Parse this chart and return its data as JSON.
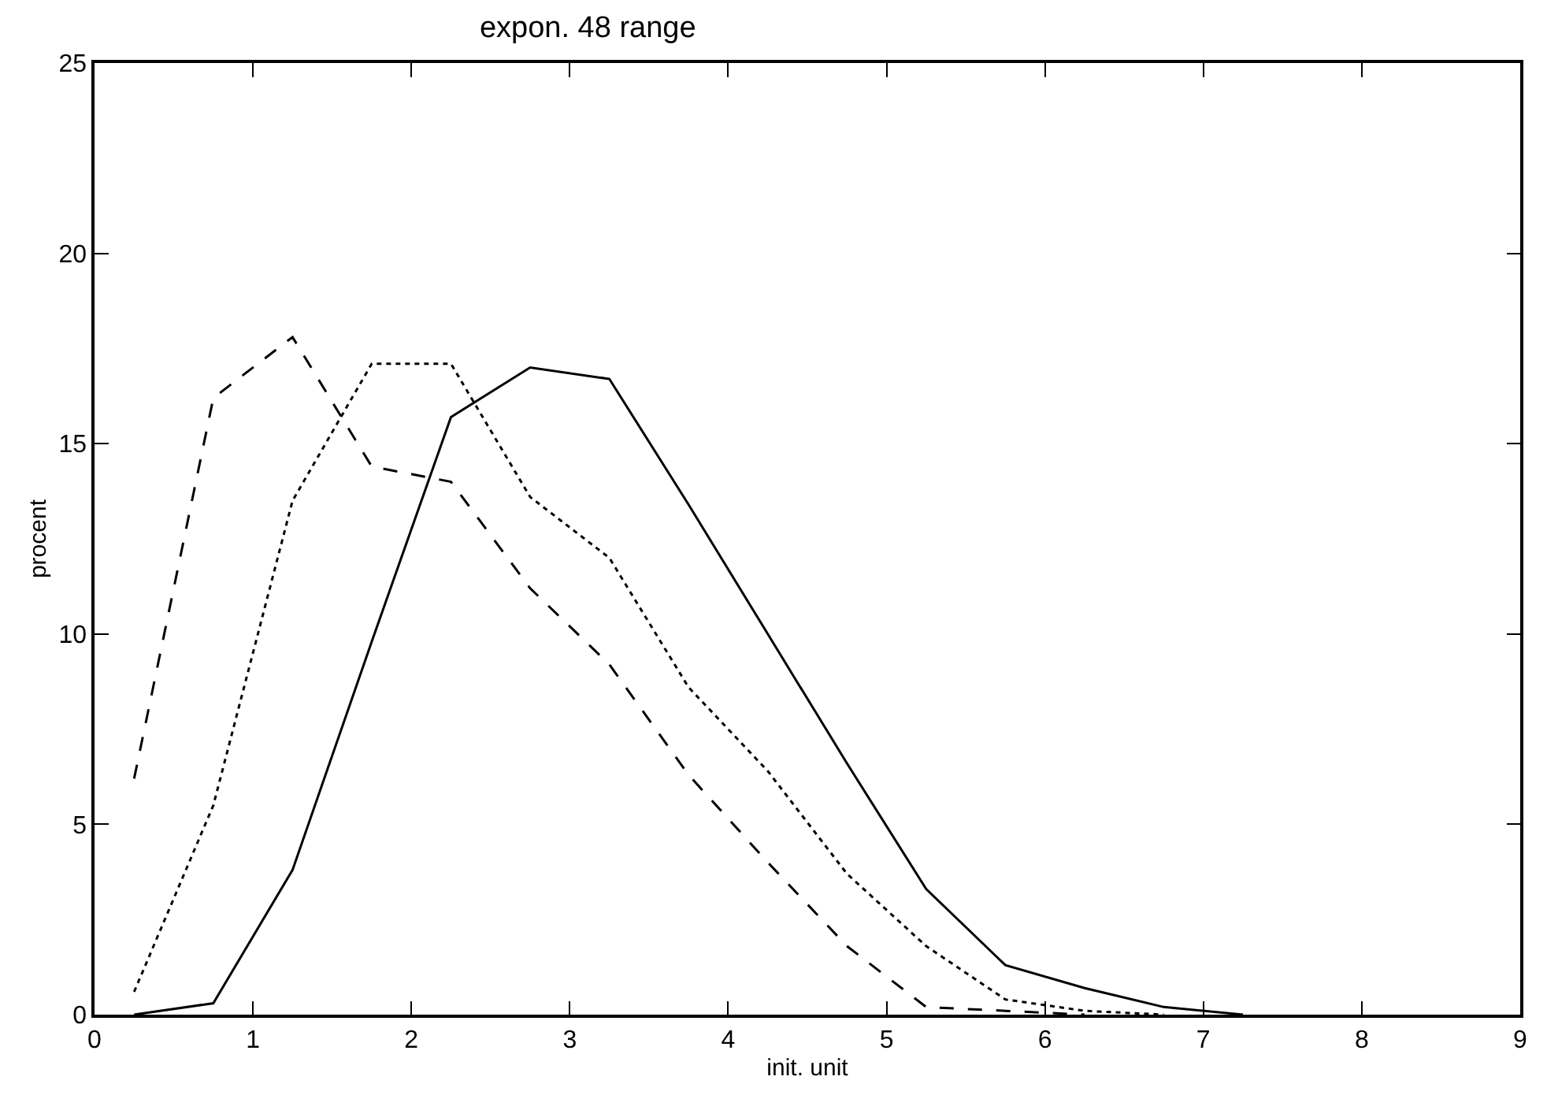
{
  "chart_data": {
    "type": "line",
    "title": "expon. 48 range",
    "xlabel": "init. unit",
    "ylabel": "procent",
    "x": [
      0.25,
      0.75,
      1.25,
      1.75,
      2.25,
      2.75,
      3.25,
      3.75,
      4.25,
      4.75,
      5.25,
      5.75,
      6.25,
      6.75,
      7.25
    ],
    "series": [
      {
        "color": "#000000",
        "line_style": "solid",
        "values": [
          0,
          0.3,
          3.8,
          9.8,
          15.7,
          17.0,
          16.7,
          13.4,
          10.0,
          6.6,
          3.3,
          1.3,
          0.7,
          0.2,
          0
        ]
      },
      {
        "color": "#000000",
        "line_style": "dashed",
        "values": [
          6.2,
          16.2,
          17.8,
          14.4,
          14.0,
          11.2,
          9.2,
          6.3,
          4.0,
          1.8,
          0.2,
          0.1,
          0,
          null,
          null
        ]
      },
      {
        "color": "#000000",
        "line_style": "dotted",
        "values": [
          0.6,
          5.5,
          13.5,
          17.1,
          17.1,
          13.6,
          12.0,
          8.6,
          6.4,
          3.7,
          1.8,
          0.4,
          0.1,
          0,
          null
        ]
      }
    ],
    "xlim": [
      0,
      9
    ],
    "xticks": [
      0,
      1,
      2,
      3,
      4,
      5,
      6,
      7,
      8,
      9
    ],
    "ylim": [
      0,
      25
    ],
    "yticks": [
      0,
      5,
      10,
      15,
      20,
      25
    ],
    "grid": false,
    "marker": "none"
  }
}
